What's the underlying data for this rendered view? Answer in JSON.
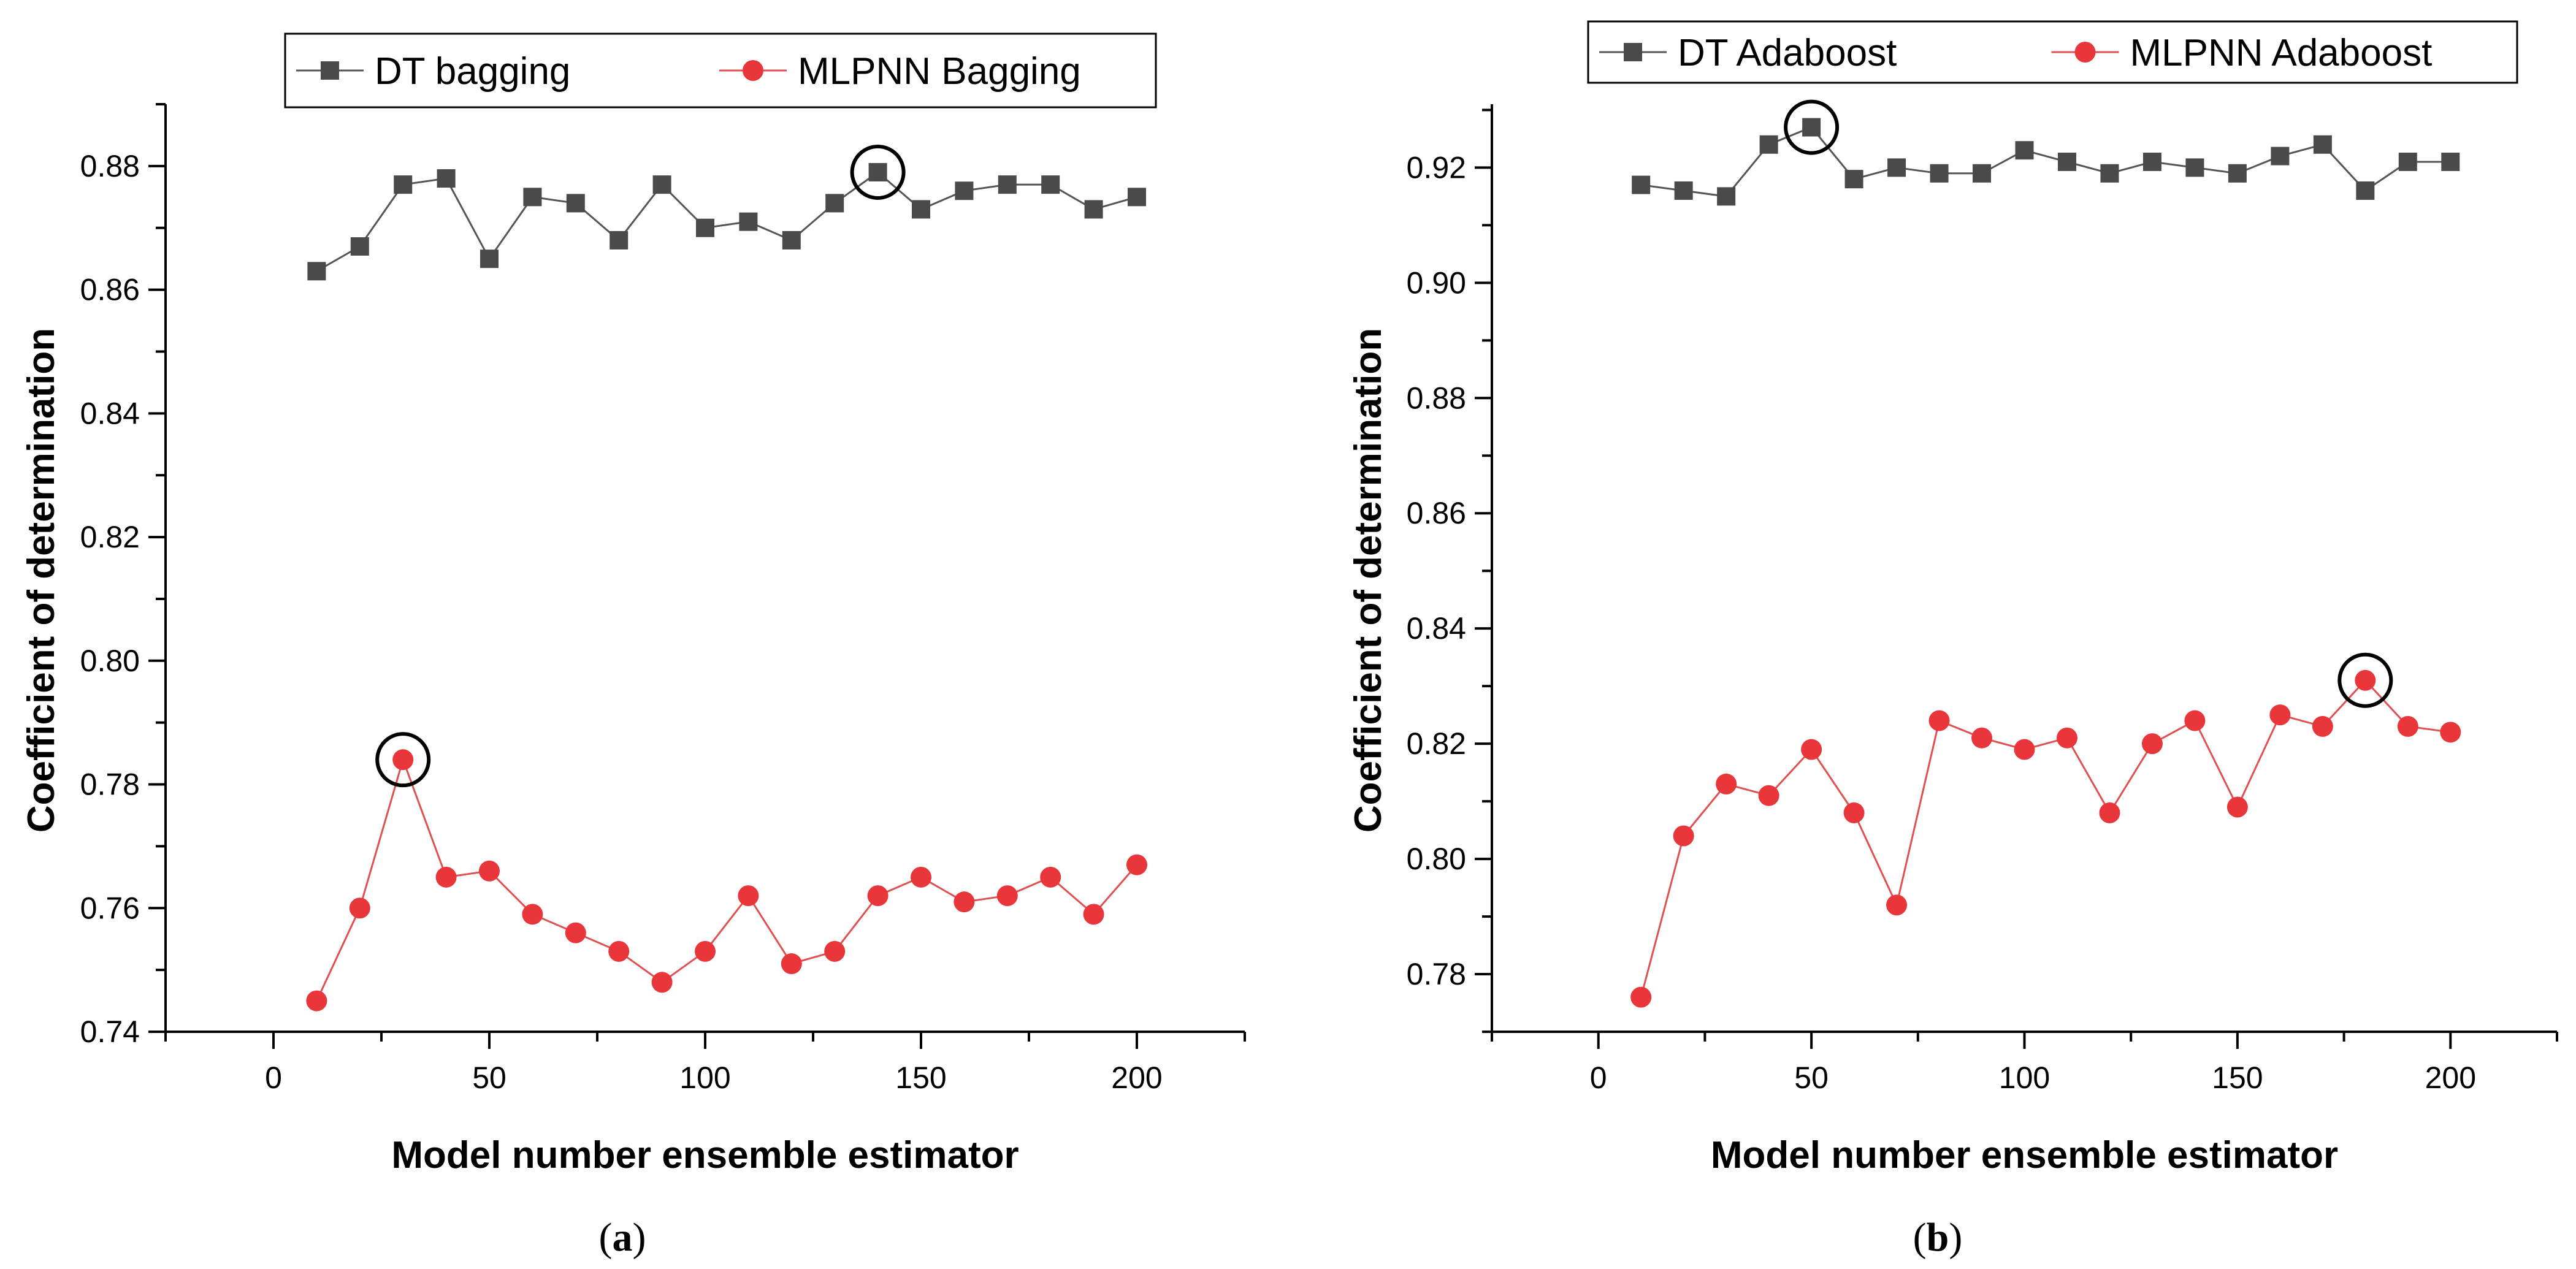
{
  "chart_data": [
    {
      "type": "line",
      "panel_label": "a",
      "xlabel": "Model number ensemble estimator",
      "ylabel": "Coefficient of determination",
      "xlim": [
        -25,
        225
      ],
      "ylim": [
        0.74,
        0.89
      ],
      "xticks": [
        0,
        50,
        100,
        150,
        200
      ],
      "yticks": [
        0.74,
        0.76,
        0.78,
        0.8,
        0.82,
        0.84,
        0.86,
        0.88
      ],
      "ytick_labels": [
        "0.74",
        "0.76",
        "0.78",
        "0.80",
        "0.82",
        "0.84",
        "0.86",
        "0.88"
      ],
      "legend_position": "top",
      "x": [
        10,
        20,
        30,
        40,
        50,
        60,
        70,
        80,
        90,
        100,
        110,
        120,
        130,
        140,
        150,
        160,
        170,
        180,
        190,
        200
      ],
      "series": [
        {
          "name": "DT bagging",
          "marker": "square",
          "color": "#4a4a4a",
          "values": [
            0.863,
            0.867,
            0.877,
            0.878,
            0.865,
            0.875,
            0.874,
            0.868,
            0.877,
            0.87,
            0.871,
            0.868,
            0.874,
            0.879,
            0.873,
            0.876,
            0.877,
            0.877,
            0.873,
            0.875
          ],
          "highlight_x": 140
        },
        {
          "name": "MLPNN Bagging",
          "marker": "circle",
          "color": "#e8363b",
          "values": [
            0.745,
            0.76,
            0.784,
            0.765,
            0.766,
            0.759,
            0.756,
            0.753,
            0.748,
            0.753,
            0.762,
            0.751,
            0.753,
            0.762,
            0.765,
            0.761,
            0.762,
            0.765,
            0.759,
            0.767
          ],
          "highlight_x": 30
        }
      ]
    },
    {
      "type": "line",
      "panel_label": "b",
      "xlabel": "Model number ensemble estimator",
      "ylabel": "Coefficient of determination",
      "xlim": [
        -25,
        225
      ],
      "ylim": [
        0.77,
        0.931
      ],
      "xticks": [
        0,
        50,
        100,
        150,
        200
      ],
      "yticks": [
        0.78,
        0.8,
        0.82,
        0.84,
        0.86,
        0.88,
        0.9,
        0.92
      ],
      "ytick_labels": [
        "0.78",
        "0.80",
        "0.82",
        "0.84",
        "0.86",
        "0.88",
        "0.90",
        "0.92"
      ],
      "legend_position": "top",
      "x": [
        10,
        20,
        30,
        40,
        50,
        60,
        70,
        80,
        90,
        100,
        110,
        120,
        130,
        140,
        150,
        160,
        170,
        180,
        190,
        200
      ],
      "series": [
        {
          "name": "DT Adaboost",
          "marker": "square",
          "color": "#4a4a4a",
          "values": [
            0.917,
            0.916,
            0.915,
            0.924,
            0.927,
            0.918,
            0.92,
            0.919,
            0.919,
            0.923,
            0.921,
            0.919,
            0.921,
            0.92,
            0.919,
            0.922,
            0.924,
            0.916,
            0.921,
            0.921
          ],
          "highlight_x": 50
        },
        {
          "name": "MLPNN Adaboost",
          "marker": "circle",
          "color": "#e8363b",
          "values": [
            0.776,
            0.804,
            0.813,
            0.811,
            0.819,
            0.808,
            0.792,
            0.824,
            0.821,
            0.819,
            0.821,
            0.808,
            0.82,
            0.824,
            0.809,
            0.825,
            0.823,
            0.831,
            0.823,
            0.822
          ],
          "highlight_x": 180
        }
      ]
    }
  ]
}
